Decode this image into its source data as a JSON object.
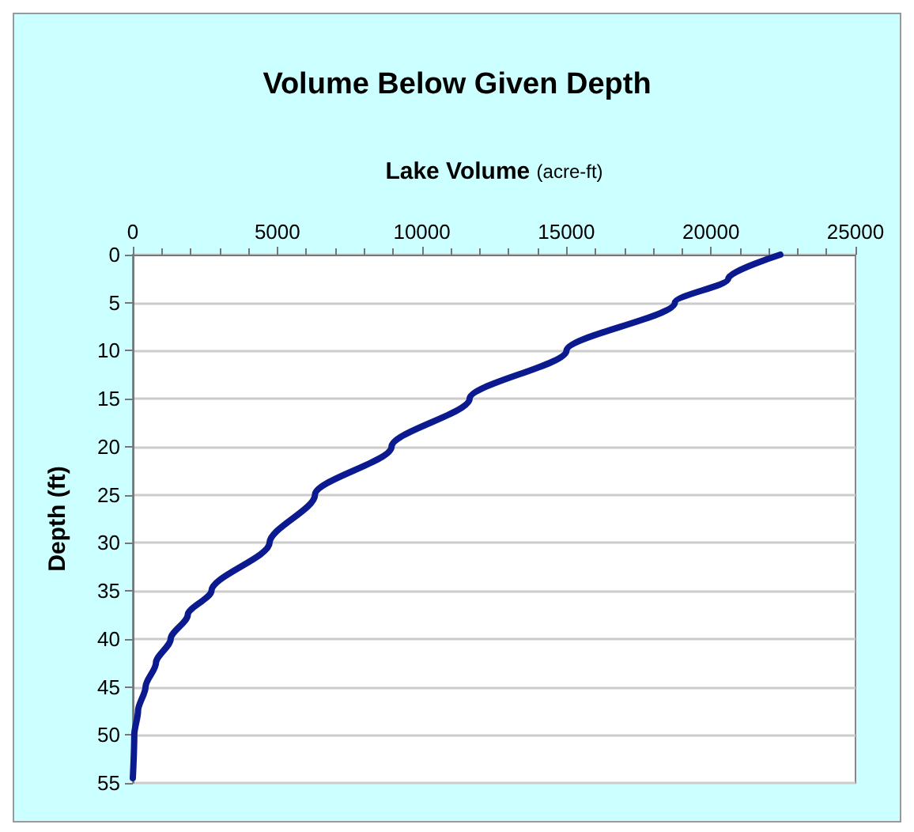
{
  "chart_data": {
    "type": "line",
    "title": "Volume Below Given Depth",
    "xlabel": "Lake Volume (acre-ft)",
    "ylabel": "Depth (ft)",
    "x": [
      22400,
      20600,
      18750,
      15000,
      11650,
      8950,
      6300,
      4730,
      2720,
      1900,
      1310,
      800,
      440,
      180,
      50,
      0
    ],
    "series": [
      {
        "color": "#0b1a8f",
        "values": [
          0,
          2.5,
          5,
          10,
          15,
          20,
          25,
          30,
          35,
          37.5,
          40,
          42.5,
          45,
          47.5,
          50,
          54.5
        ]
      }
    ],
    "xlim": [
      0,
      25000
    ],
    "xticks": [
      0,
      5000,
      10000,
      15000,
      20000,
      25000
    ],
    "ylim": [
      55,
      0
    ],
    "yticks": [
      0,
      5,
      10,
      15,
      20,
      25,
      30,
      35,
      40,
      45,
      50,
      55
    ],
    "grid": "y",
    "marker": "none",
    "line_style": "solid"
  }
}
